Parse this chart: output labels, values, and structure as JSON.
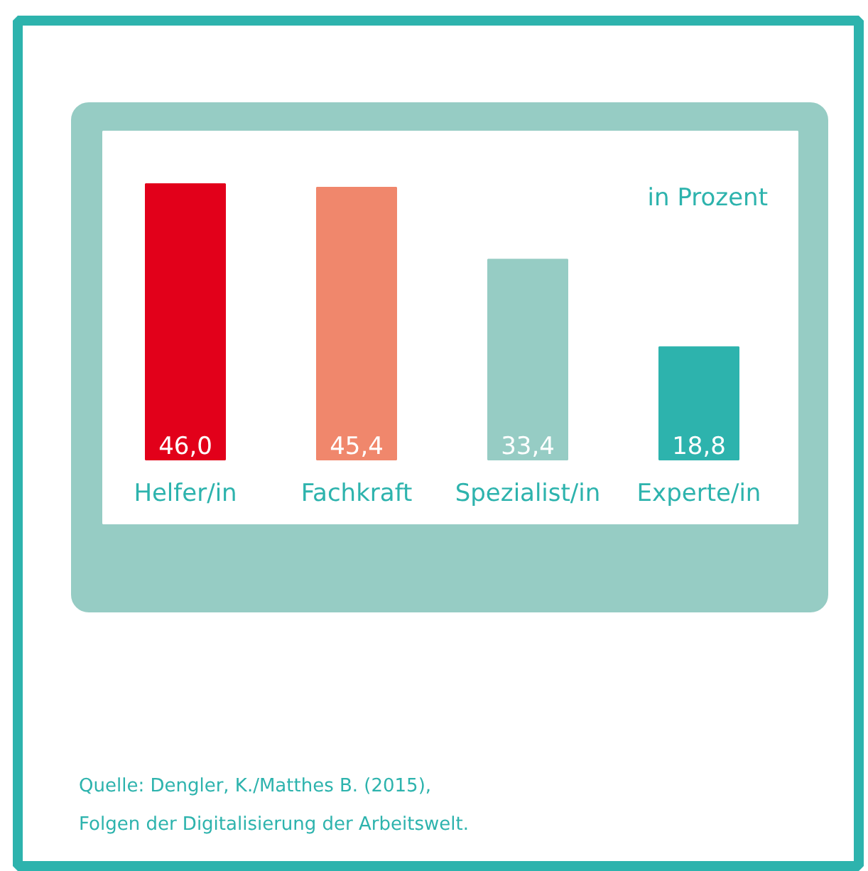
{
  "chart_data": {
    "type": "bar",
    "ylabel": "in Prozent",
    "categories": [
      "Helfer/in",
      "Fachkraft",
      "Spezialist/in",
      "Experte/in"
    ],
    "values": [
      46.0,
      45.4,
      33.4,
      18.8
    ],
    "colors": [
      "#e2001a",
      "#f0876c",
      "#96ccc4",
      "#2db3ad"
    ],
    "value_labels": [
      "46,0",
      "45,4",
      "33,4",
      "18,8"
    ],
    "annotations": [
      "Quelle: Dengler, K./Matthes B. (2015),",
      "Folgen der Digitalisierung der Arbeitswelt."
    ]
  }
}
